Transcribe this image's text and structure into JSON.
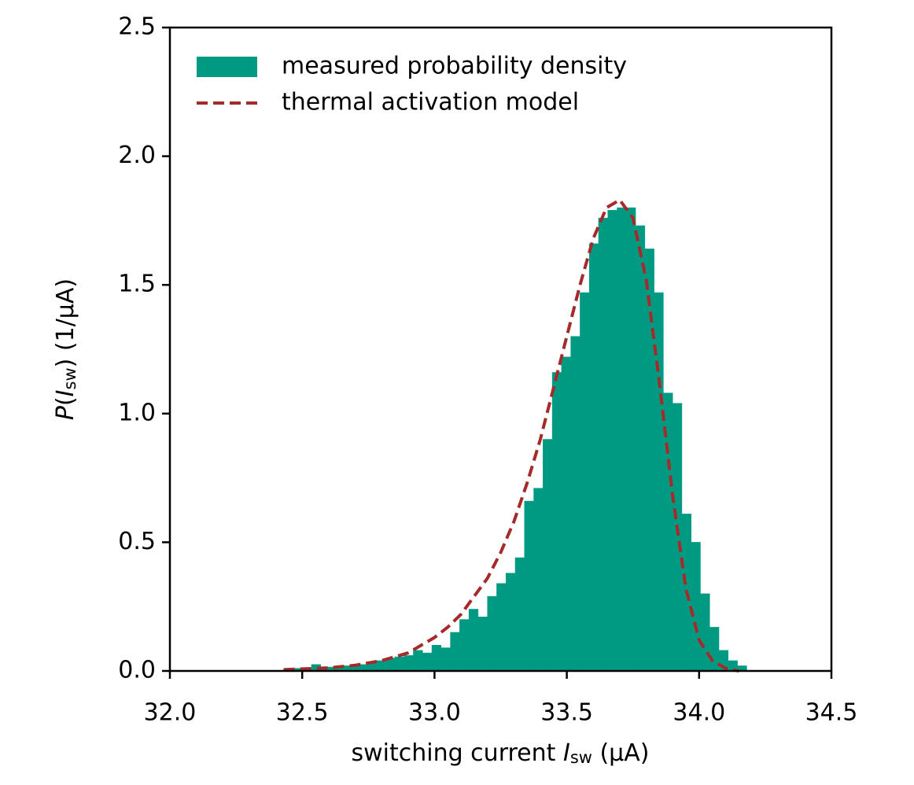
{
  "chart_data": {
    "type": "histogram",
    "x_label": [
      "switching current ",
      "I",
      "sw",
      " (μA)"
    ],
    "y_label": [
      "P",
      "(",
      "I",
      "sw",
      ") (1/μA)"
    ],
    "xlim": [
      32.0,
      34.5
    ],
    "ylim": [
      0,
      2.5
    ],
    "xticks": [
      {
        "value": 32,
        "label": "32.0"
      },
      32.5,
      {
        "value": 33,
        "label": "33.0"
      },
      33.5,
      {
        "value": 34,
        "label": "34.0"
      },
      34.5
    ],
    "yticks": [
      {
        "value": 0,
        "label": "0.0"
      },
      0.5,
      {
        "value": 1,
        "label": "1.0"
      },
      1.5,
      {
        "value": 2,
        "label": "2.0"
      },
      2.5
    ],
    "legend": "upper left",
    "series": [
      {
        "type": "histogram",
        "name": "measured probability density",
        "color": "#009a82",
        "bins": [
          32.43,
          32.465,
          32.5,
          32.535,
          32.57,
          32.605,
          32.64,
          32.675,
          32.71,
          32.745,
          32.78,
          32.815,
          32.85,
          32.885,
          32.92,
          32.955,
          32.99,
          33.025,
          33.06,
          33.095,
          33.13,
          33.165,
          33.2,
          33.235,
          33.27,
          33.305,
          33.34,
          33.375,
          33.41,
          33.445,
          33.48,
          33.515,
          33.55,
          33.585,
          33.62,
          33.655,
          33.69,
          33.725,
          33.76,
          33.795,
          33.83,
          33.865,
          33.9,
          33.935,
          33.97,
          34.005,
          34.04,
          34.075,
          34.11,
          34.145,
          34.18
        ],
        "values": [
          0.01,
          0.01,
          0.01,
          0.025,
          0.015,
          0.015,
          0.02,
          0.02,
          0.025,
          0.03,
          0.04,
          0.05,
          0.055,
          0.06,
          0.08,
          0.07,
          0.1,
          0.09,
          0.15,
          0.2,
          0.24,
          0.21,
          0.29,
          0.34,
          0.38,
          0.44,
          0.66,
          0.71,
          0.9,
          1.16,
          1.22,
          1.3,
          1.47,
          1.66,
          1.76,
          1.79,
          1.8,
          1.8,
          1.73,
          1.64,
          1.47,
          1.08,
          1.04,
          0.61,
          0.5,
          0.3,
          0.17,
          0.08,
          0.04,
          0.02
        ]
      },
      {
        "type": "line",
        "name": "thermal activation model",
        "color": "#a52a2a",
        "linestyle": "dashed",
        "x": [
          32.43,
          32.5,
          32.6,
          32.7,
          32.8,
          32.9,
          33.0,
          33.05,
          33.1,
          33.15,
          33.2,
          33.25,
          33.3,
          33.35,
          33.4,
          33.45,
          33.5,
          33.55,
          33.6,
          33.65,
          33.7,
          33.75,
          33.8,
          33.85,
          33.9,
          33.95,
          34.0,
          34.05,
          34.1,
          34.15
        ],
        "values": [
          0.005,
          0.008,
          0.012,
          0.022,
          0.04,
          0.07,
          0.13,
          0.17,
          0.22,
          0.29,
          0.36,
          0.46,
          0.58,
          0.73,
          0.9,
          1.1,
          1.3,
          1.5,
          1.68,
          1.8,
          1.83,
          1.76,
          1.52,
          1.12,
          0.68,
          0.32,
          0.12,
          0.04,
          0.01,
          0.0
        ]
      }
    ]
  }
}
